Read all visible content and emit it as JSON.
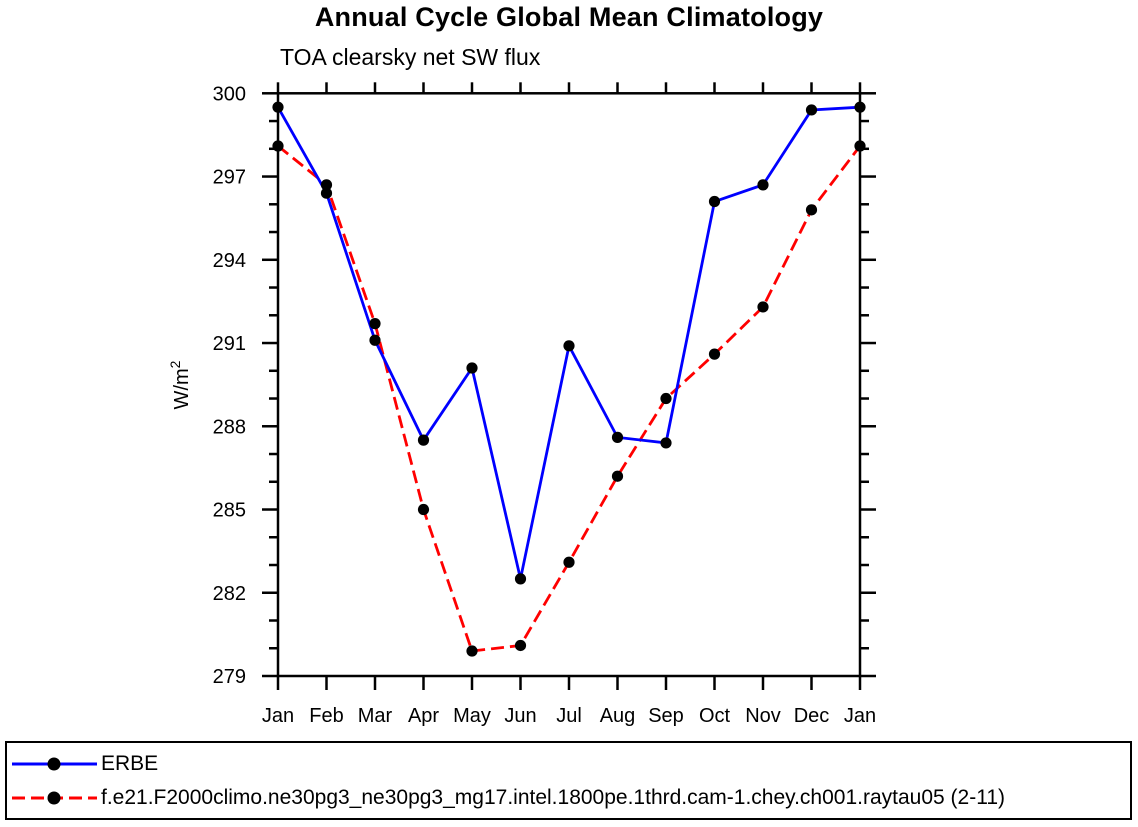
{
  "page": {
    "background": "#ffffff"
  },
  "chart_data": {
    "type": "line",
    "title": "Annual Cycle Global Mean Climatology",
    "subtitle": "TOA clearsky net SW flux",
    "ylabel": {
      "base": "W/m",
      "exponent": "2"
    },
    "x_categories": [
      "Jan",
      "Feb",
      "Mar",
      "Apr",
      "May",
      "Jun",
      "Jul",
      "Aug",
      "Sep",
      "Oct",
      "Nov",
      "Dec",
      "Jan"
    ],
    "ylim": [
      279,
      300
    ],
    "ytick_major_step": 3,
    "ytick_minor_step": 1,
    "ytick_major_labels": [
      "279",
      "282",
      "285",
      "288",
      "291",
      "294",
      "297",
      "300"
    ],
    "grid": false,
    "axis_color": "#000000",
    "legend_position": "bottom-box",
    "series": [
      {
        "name": "ERBE",
        "line_style": "solid",
        "line_color": "#0000ff",
        "marker": "filled-circle",
        "marker_color": "#000000",
        "values": [
          299.5,
          296.4,
          291.1,
          287.5,
          290.1,
          282.5,
          290.9,
          287.6,
          287.4,
          296.1,
          296.7,
          299.4,
          299.5
        ]
      },
      {
        "name": "f.e21.F2000climo.ne30pg3_ne30pg3_mg17.intel.1800pe.1thrd.cam-1.chey.ch001.raytau05 (2-11)",
        "line_style": "dashed",
        "line_color": "#ff0000",
        "marker": "filled-circle",
        "marker_color": "#000000",
        "values": [
          298.1,
          296.7,
          291.7,
          285.0,
          279.9,
          280.1,
          283.1,
          286.2,
          289.0,
          290.6,
          292.3,
          295.8,
          298.1
        ]
      }
    ]
  }
}
